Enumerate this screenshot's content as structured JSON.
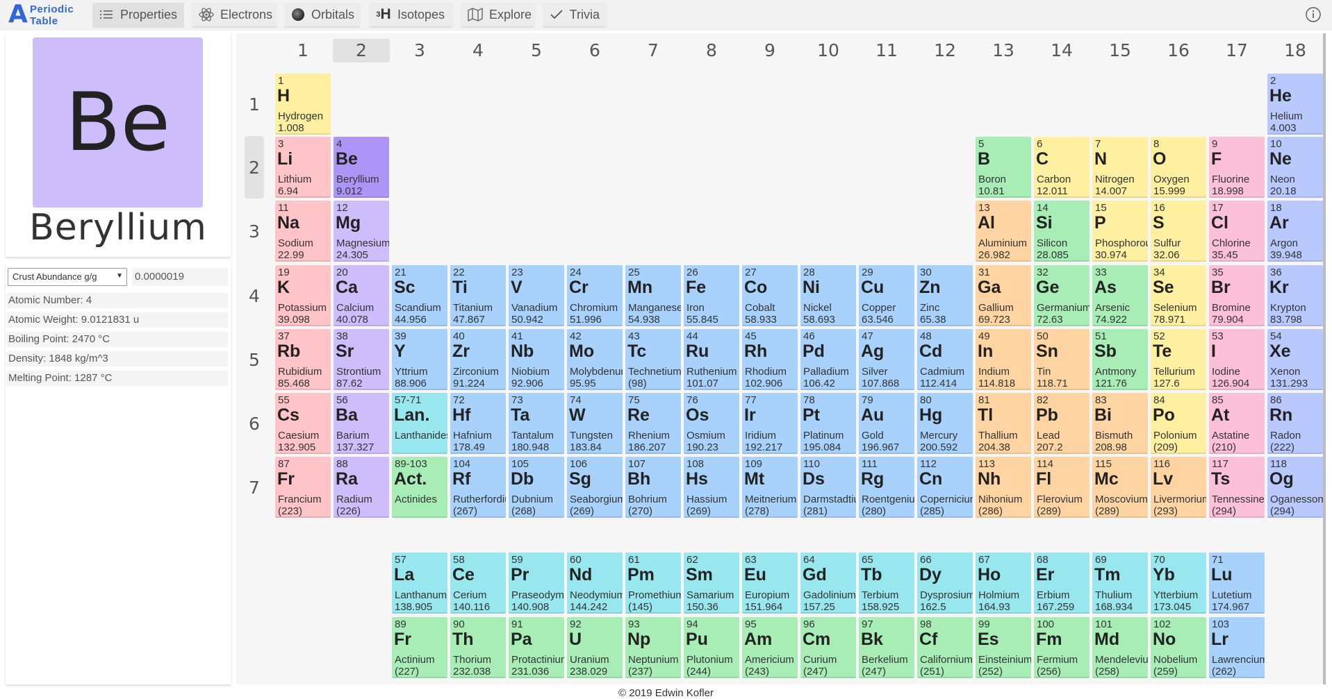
{
  "app": {
    "logo_letter": "A",
    "logo_line1": "Periodic",
    "logo_line2": "Table"
  },
  "nav": [
    {
      "label": "Properties",
      "icon": "list-icon",
      "active": true
    },
    {
      "label": "Electrons",
      "icon": "atom-icon",
      "active": false
    },
    {
      "label": "Orbitals",
      "icon": "orbital-sphere-icon",
      "active": false
    },
    {
      "label": "Isotopes",
      "icon": "isotope-icon",
      "active": false
    },
    {
      "label": "Explore",
      "icon": "map-icon",
      "active": false
    },
    {
      "label": "Trivia",
      "icon": "check-icon",
      "active": false
    }
  ],
  "isotope_icon_text": {
    "sup": "3",
    "main": "H"
  },
  "selected": {
    "symbol": "Be",
    "name": "Beryllium",
    "color": "#cdbdfa",
    "property_select": "Crust Abundance g/g",
    "property_value": "0.0000019",
    "properties": [
      "Atomic Number: 4",
      "Atomic Weight: 9.0121831 u",
      "Boiling Point: 2470 °C",
      "Density: 1848 kg/m^3",
      "Melting Point: 1287 °C"
    ]
  },
  "groups": [
    "1",
    "2",
    "3",
    "4",
    "5",
    "6",
    "7",
    "8",
    "9",
    "10",
    "11",
    "12",
    "13",
    "14",
    "15",
    "16",
    "17",
    "18"
  ],
  "periods": [
    "1",
    "2",
    "3",
    "4",
    "5",
    "6",
    "7"
  ],
  "highlight": {
    "group": "2",
    "period": "2"
  },
  "category_colors": {
    "alkali": "#ffc4c8",
    "alkaline": "#cdbdfa",
    "transition": "#a8d2fb",
    "lanthanide": "#98e6ee",
    "actinide": "#a8edb6",
    "metal": "#fed5a2",
    "metalloid": "#a8edb6",
    "nonmetal": "#fef0a0",
    "halogen": "#fdc0d9",
    "noble": "#b9c9fd",
    "selected": "#ad94f7"
  },
  "elements": [
    {
      "n": "1",
      "s": "H",
      "name": "Hydrogen",
      "w": "1.008",
      "g": 1,
      "p": 1,
      "t": "nonmetal"
    },
    {
      "n": "2",
      "s": "He",
      "name": "Helium",
      "w": "4.003",
      "g": 18,
      "p": 1,
      "t": "noble"
    },
    {
      "n": "3",
      "s": "Li",
      "name": "Lithium",
      "w": "6.94",
      "g": 1,
      "p": 2,
      "t": "alkali"
    },
    {
      "n": "4",
      "s": "Be",
      "name": "Beryllium",
      "w": "9.012",
      "g": 2,
      "p": 2,
      "t": "selected"
    },
    {
      "n": "5",
      "s": "B",
      "name": "Boron",
      "w": "10.81",
      "g": 13,
      "p": 2,
      "t": "metalloid"
    },
    {
      "n": "6",
      "s": "C",
      "name": "Carbon",
      "w": "12.011",
      "g": 14,
      "p": 2,
      "t": "nonmetal"
    },
    {
      "n": "7",
      "s": "N",
      "name": "Nitrogen",
      "w": "14.007",
      "g": 15,
      "p": 2,
      "t": "nonmetal"
    },
    {
      "n": "8",
      "s": "O",
      "name": "Oxygen",
      "w": "15.999",
      "g": 16,
      "p": 2,
      "t": "nonmetal"
    },
    {
      "n": "9",
      "s": "F",
      "name": "Fluorine",
      "w": "18.998",
      "g": 17,
      "p": 2,
      "t": "halogen"
    },
    {
      "n": "10",
      "s": "Ne",
      "name": "Neon",
      "w": "20.18",
      "g": 18,
      "p": 2,
      "t": "noble"
    },
    {
      "n": "11",
      "s": "Na",
      "name": "Sodium",
      "w": "22.99",
      "g": 1,
      "p": 3,
      "t": "alkali"
    },
    {
      "n": "12",
      "s": "Mg",
      "name": "Magnesium",
      "w": "24.305",
      "g": 2,
      "p": 3,
      "t": "alkaline"
    },
    {
      "n": "13",
      "s": "Al",
      "name": "Aluminium",
      "w": "26.982",
      "g": 13,
      "p": 3,
      "t": "metal"
    },
    {
      "n": "14",
      "s": "Si",
      "name": "Silicon",
      "w": "28.085",
      "g": 14,
      "p": 3,
      "t": "metalloid"
    },
    {
      "n": "15",
      "s": "P",
      "name": "Phosphorous",
      "w": "30.974",
      "g": 15,
      "p": 3,
      "t": "nonmetal"
    },
    {
      "n": "16",
      "s": "S",
      "name": "Sulfur",
      "w": "32.06",
      "g": 16,
      "p": 3,
      "t": "nonmetal"
    },
    {
      "n": "17",
      "s": "Cl",
      "name": "Chlorine",
      "w": "35.45",
      "g": 17,
      "p": 3,
      "t": "halogen"
    },
    {
      "n": "18",
      "s": "Ar",
      "name": "Argon",
      "w": "39.948",
      "g": 18,
      "p": 3,
      "t": "noble"
    },
    {
      "n": "19",
      "s": "K",
      "name": "Potassium",
      "w": "39.098",
      "g": 1,
      "p": 4,
      "t": "alkali"
    },
    {
      "n": "20",
      "s": "Ca",
      "name": "Calcium",
      "w": "40.078",
      "g": 2,
      "p": 4,
      "t": "alkaline"
    },
    {
      "n": "21",
      "s": "Sc",
      "name": "Scandium",
      "w": "44.956",
      "g": 3,
      "p": 4,
      "t": "transition"
    },
    {
      "n": "22",
      "s": "Ti",
      "name": "Titanium",
      "w": "47.867",
      "g": 4,
      "p": 4,
      "t": "transition"
    },
    {
      "n": "23",
      "s": "V",
      "name": "Vanadium",
      "w": "50.942",
      "g": 5,
      "p": 4,
      "t": "transition"
    },
    {
      "n": "24",
      "s": "Cr",
      "name": "Chromium",
      "w": "51.996",
      "g": 6,
      "p": 4,
      "t": "transition"
    },
    {
      "n": "25",
      "s": "Mn",
      "name": "Manganese",
      "w": "54.938",
      "g": 7,
      "p": 4,
      "t": "transition"
    },
    {
      "n": "26",
      "s": "Fe",
      "name": "Iron",
      "w": "55.845",
      "g": 8,
      "p": 4,
      "t": "transition"
    },
    {
      "n": "27",
      "s": "Co",
      "name": "Cobalt",
      "w": "58.933",
      "g": 9,
      "p": 4,
      "t": "transition"
    },
    {
      "n": "28",
      "s": "Ni",
      "name": "Nickel",
      "w": "58.693",
      "g": 10,
      "p": 4,
      "t": "transition"
    },
    {
      "n": "29",
      "s": "Cu",
      "name": "Copper",
      "w": "63.546",
      "g": 11,
      "p": 4,
      "t": "transition"
    },
    {
      "n": "30",
      "s": "Zn",
      "name": "Zinc",
      "w": "65.38",
      "g": 12,
      "p": 4,
      "t": "transition"
    },
    {
      "n": "31",
      "s": "Ga",
      "name": "Gallium",
      "w": "69.723",
      "g": 13,
      "p": 4,
      "t": "metal"
    },
    {
      "n": "32",
      "s": "Ge",
      "name": "Germanium",
      "w": "72.63",
      "g": 14,
      "p": 4,
      "t": "metalloid"
    },
    {
      "n": "33",
      "s": "As",
      "name": "Arsenic",
      "w": "74.922",
      "g": 15,
      "p": 4,
      "t": "metalloid"
    },
    {
      "n": "34",
      "s": "Se",
      "name": "Selenium",
      "w": "78.971",
      "g": 16,
      "p": 4,
      "t": "nonmetal"
    },
    {
      "n": "35",
      "s": "Br",
      "name": "Bromine",
      "w": "79.904",
      "g": 17,
      "p": 4,
      "t": "halogen"
    },
    {
      "n": "36",
      "s": "Kr",
      "name": "Krypton",
      "w": "83.798",
      "g": 18,
      "p": 4,
      "t": "noble"
    },
    {
      "n": "37",
      "s": "Rb",
      "name": "Rubidium",
      "w": "85.468",
      "g": 1,
      "p": 5,
      "t": "alkali"
    },
    {
      "n": "38",
      "s": "Sr",
      "name": "Strontium",
      "w": "87.62",
      "g": 2,
      "p": 5,
      "t": "alkaline"
    },
    {
      "n": "39",
      "s": "Y",
      "name": "Yttrium",
      "w": "88.906",
      "g": 3,
      "p": 5,
      "t": "transition"
    },
    {
      "n": "40",
      "s": "Zr",
      "name": "Zirconium",
      "w": "91.224",
      "g": 4,
      "p": 5,
      "t": "transition"
    },
    {
      "n": "41",
      "s": "Nb",
      "name": "Niobium",
      "w": "92.906",
      "g": 5,
      "p": 5,
      "t": "transition"
    },
    {
      "n": "42",
      "s": "Mo",
      "name": "Molybdenum",
      "w": "95.95",
      "g": 6,
      "p": 5,
      "t": "transition"
    },
    {
      "n": "43",
      "s": "Tc",
      "name": "Technetium",
      "w": "(98)",
      "g": 7,
      "p": 5,
      "t": "transition"
    },
    {
      "n": "44",
      "s": "Ru",
      "name": "Ruthenium",
      "w": "101.07",
      "g": 8,
      "p": 5,
      "t": "transition"
    },
    {
      "n": "45",
      "s": "Rh",
      "name": "Rhodium",
      "w": "102.906",
      "g": 9,
      "p": 5,
      "t": "transition"
    },
    {
      "n": "46",
      "s": "Pd",
      "name": "Palladium",
      "w": "106.42",
      "g": 10,
      "p": 5,
      "t": "transition"
    },
    {
      "n": "47",
      "s": "Ag",
      "name": "Silver",
      "w": "107.868",
      "g": 11,
      "p": 5,
      "t": "transition"
    },
    {
      "n": "48",
      "s": "Cd",
      "name": "Cadmium",
      "w": "112.414",
      "g": 12,
      "p": 5,
      "t": "transition"
    },
    {
      "n": "49",
      "s": "In",
      "name": "Indium",
      "w": "114.818",
      "g": 13,
      "p": 5,
      "t": "metal"
    },
    {
      "n": "50",
      "s": "Sn",
      "name": "Tin",
      "w": "118.71",
      "g": 14,
      "p": 5,
      "t": "metal"
    },
    {
      "n": "51",
      "s": "Sb",
      "name": "Antmony",
      "w": "121.76",
      "g": 15,
      "p": 5,
      "t": "metalloid"
    },
    {
      "n": "52",
      "s": "Te",
      "name": "Tellurium",
      "w": "127.6",
      "g": 16,
      "p": 5,
      "t": "nonmetal"
    },
    {
      "n": "53",
      "s": "I",
      "name": "Iodine",
      "w": "126.904",
      "g": 17,
      "p": 5,
      "t": "halogen"
    },
    {
      "n": "54",
      "s": "Xe",
      "name": "Xenon",
      "w": "131.293",
      "g": 18,
      "p": 5,
      "t": "noble"
    },
    {
      "n": "55",
      "s": "Cs",
      "name": "Caesium",
      "w": "132.905",
      "g": 1,
      "p": 6,
      "t": "alkali"
    },
    {
      "n": "56",
      "s": "Ba",
      "name": "Barium",
      "w": "137.327",
      "g": 2,
      "p": 6,
      "t": "alkaline"
    },
    {
      "n": "57-71",
      "s": "Lan.",
      "name": "Lanthanides",
      "w": "",
      "g": 3,
      "p": 6,
      "t": "lanthanide"
    },
    {
      "n": "72",
      "s": "Hf",
      "name": "Hafnium",
      "w": "178.49",
      "g": 4,
      "p": 6,
      "t": "transition"
    },
    {
      "n": "73",
      "s": "Ta",
      "name": "Tantalum",
      "w": "180.948",
      "g": 5,
      "p": 6,
      "t": "transition"
    },
    {
      "n": "74",
      "s": "W",
      "name": "Tungsten",
      "w": "183.84",
      "g": 6,
      "p": 6,
      "t": "transition"
    },
    {
      "n": "75",
      "s": "Re",
      "name": "Rhenium",
      "w": "186.207",
      "g": 7,
      "p": 6,
      "t": "transition"
    },
    {
      "n": "76",
      "s": "Os",
      "name": "Osmium",
      "w": "190.23",
      "g": 8,
      "p": 6,
      "t": "transition"
    },
    {
      "n": "77",
      "s": "Ir",
      "name": "Iridium",
      "w": "192.217",
      "g": 9,
      "p": 6,
      "t": "transition"
    },
    {
      "n": "78",
      "s": "Pt",
      "name": "Platinum",
      "w": "195.084",
      "g": 10,
      "p": 6,
      "t": "transition"
    },
    {
      "n": "79",
      "s": "Au",
      "name": "Gold",
      "w": "196.967",
      "g": 11,
      "p": 6,
      "t": "transition"
    },
    {
      "n": "80",
      "s": "Hg",
      "name": "Mercury",
      "w": "200.592",
      "g": 12,
      "p": 6,
      "t": "transition"
    },
    {
      "n": "81",
      "s": "Tl",
      "name": "Thallium",
      "w": "204.38",
      "g": 13,
      "p": 6,
      "t": "metal"
    },
    {
      "n": "82",
      "s": "Pb",
      "name": "Lead",
      "w": "207.2",
      "g": 14,
      "p": 6,
      "t": "metal"
    },
    {
      "n": "83",
      "s": "Bi",
      "name": "Bismuth",
      "w": "208.98",
      "g": 15,
      "p": 6,
      "t": "metal"
    },
    {
      "n": "84",
      "s": "Po",
      "name": "Polonium",
      "w": "(209)",
      "g": 16,
      "p": 6,
      "t": "nonmetal"
    },
    {
      "n": "85",
      "s": "At",
      "name": "Astatine",
      "w": "(210)",
      "g": 17,
      "p": 6,
      "t": "halogen"
    },
    {
      "n": "86",
      "s": "Rn",
      "name": "Radon",
      "w": "(222)",
      "g": 18,
      "p": 6,
      "t": "noble"
    },
    {
      "n": "87",
      "s": "Fr",
      "name": "Francium",
      "w": "(223)",
      "g": 1,
      "p": 7,
      "t": "alkali"
    },
    {
      "n": "88",
      "s": "Ra",
      "name": "Radium",
      "w": "(226)",
      "g": 2,
      "p": 7,
      "t": "alkaline"
    },
    {
      "n": "89-103",
      "s": "Act.",
      "name": "Actinides",
      "w": "",
      "g": 3,
      "p": 7,
      "t": "actinide"
    },
    {
      "n": "104",
      "s": "Rf",
      "name": "Rutherfordium",
      "w": "(267)",
      "g": 4,
      "p": 7,
      "t": "transition"
    },
    {
      "n": "105",
      "s": "Db",
      "name": "Dubnium",
      "w": "(268)",
      "g": 5,
      "p": 7,
      "t": "transition"
    },
    {
      "n": "106",
      "s": "Sg",
      "name": "Seaborgium",
      "w": "(269)",
      "g": 6,
      "p": 7,
      "t": "transition"
    },
    {
      "n": "107",
      "s": "Bh",
      "name": "Bohrium",
      "w": "(270)",
      "g": 7,
      "p": 7,
      "t": "transition"
    },
    {
      "n": "108",
      "s": "Hs",
      "name": "Hassium",
      "w": "(269)",
      "g": 8,
      "p": 7,
      "t": "transition"
    },
    {
      "n": "109",
      "s": "Mt",
      "name": "Meitnerium",
      "w": "(278)",
      "g": 9,
      "p": 7,
      "t": "transition"
    },
    {
      "n": "110",
      "s": "Ds",
      "name": "Darmstadtium",
      "w": "(281)",
      "g": 10,
      "p": 7,
      "t": "transition"
    },
    {
      "n": "111",
      "s": "Rg",
      "name": "Roentgenium",
      "w": "(280)",
      "g": 11,
      "p": 7,
      "t": "transition"
    },
    {
      "n": "112",
      "s": "Cn",
      "name": "Copernicium",
      "w": "(285)",
      "g": 12,
      "p": 7,
      "t": "transition"
    },
    {
      "n": "113",
      "s": "Nh",
      "name": "Nihonium",
      "w": "(286)",
      "g": 13,
      "p": 7,
      "t": "metal"
    },
    {
      "n": "114",
      "s": "Fl",
      "name": "Flerovium",
      "w": "(289)",
      "g": 14,
      "p": 7,
      "t": "metal"
    },
    {
      "n": "115",
      "s": "Mc",
      "name": "Moscovium",
      "w": "(289)",
      "g": 15,
      "p": 7,
      "t": "metal"
    },
    {
      "n": "116",
      "s": "Lv",
      "name": "Livermorium",
      "w": "(293)",
      "g": 16,
      "p": 7,
      "t": "metal"
    },
    {
      "n": "117",
      "s": "Ts",
      "name": "Tennessine",
      "w": "(294)",
      "g": 17,
      "p": 7,
      "t": "halogen"
    },
    {
      "n": "118",
      "s": "Og",
      "name": "Oganesson",
      "w": "(294)",
      "g": 18,
      "p": 7,
      "t": "noble"
    },
    {
      "n": "57",
      "s": "La",
      "name": "Lanthanum",
      "w": "138.905",
      "g": 3,
      "p": 9,
      "t": "lanthanide"
    },
    {
      "n": "58",
      "s": "Ce",
      "name": "Cerium",
      "w": "140.116",
      "g": 4,
      "p": 9,
      "t": "lanthanide"
    },
    {
      "n": "59",
      "s": "Pr",
      "name": "Praseodymium",
      "w": "140.908",
      "g": 5,
      "p": 9,
      "t": "lanthanide"
    },
    {
      "n": "60",
      "s": "Nd",
      "name": "Neodymium",
      "w": "144.242",
      "g": 6,
      "p": 9,
      "t": "lanthanide"
    },
    {
      "n": "61",
      "s": "Pm",
      "name": "Promethium",
      "w": "(145)",
      "g": 7,
      "p": 9,
      "t": "lanthanide"
    },
    {
      "n": "62",
      "s": "Sm",
      "name": "Samarium",
      "w": "150.36",
      "g": 8,
      "p": 9,
      "t": "lanthanide"
    },
    {
      "n": "63",
      "s": "Eu",
      "name": "Europium",
      "w": "151.964",
      "g": 9,
      "p": 9,
      "t": "lanthanide"
    },
    {
      "n": "64",
      "s": "Gd",
      "name": "Gadolinium",
      "w": "157.25",
      "g": 10,
      "p": 9,
      "t": "lanthanide"
    },
    {
      "n": "65",
      "s": "Tb",
      "name": "Terbium",
      "w": "158.925",
      "g": 11,
      "p": 9,
      "t": "lanthanide"
    },
    {
      "n": "66",
      "s": "Dy",
      "name": "Dysprosium",
      "w": "162.5",
      "g": 12,
      "p": 9,
      "t": "lanthanide"
    },
    {
      "n": "67",
      "s": "Ho",
      "name": "Holmium",
      "w": "164.93",
      "g": 13,
      "p": 9,
      "t": "lanthanide"
    },
    {
      "n": "68",
      "s": "Er",
      "name": "Erbium",
      "w": "167.259",
      "g": 14,
      "p": 9,
      "t": "lanthanide"
    },
    {
      "n": "69",
      "s": "Tm",
      "name": "Thulium",
      "w": "168.934",
      "g": 15,
      "p": 9,
      "t": "lanthanide"
    },
    {
      "n": "70",
      "s": "Yb",
      "name": "Ytterbium",
      "w": "173.045",
      "g": 16,
      "p": 9,
      "t": "lanthanide"
    },
    {
      "n": "71",
      "s": "Lu",
      "name": "Lutetium",
      "w": "174.967",
      "g": 17,
      "p": 9,
      "t": "transition"
    },
    {
      "n": "89",
      "s": "Fr",
      "name": "Actinium",
      "w": "(227)",
      "g": 3,
      "p": 10,
      "t": "actinide"
    },
    {
      "n": "90",
      "s": "Th",
      "name": "Thorium",
      "w": "232.038",
      "g": 4,
      "p": 10,
      "t": "actinide"
    },
    {
      "n": "91",
      "s": "Pa",
      "name": "Protactinium",
      "w": "231.036",
      "g": 5,
      "p": 10,
      "t": "actinide"
    },
    {
      "n": "92",
      "s": "U",
      "name": "Uranium",
      "w": "238.029",
      "g": 6,
      "p": 10,
      "t": "actinide"
    },
    {
      "n": "93",
      "s": "Np",
      "name": "Neptunium",
      "w": "(237)",
      "g": 7,
      "p": 10,
      "t": "actinide"
    },
    {
      "n": "94",
      "s": "Pu",
      "name": "Plutonium",
      "w": "(244)",
      "g": 8,
      "p": 10,
      "t": "actinide"
    },
    {
      "n": "95",
      "s": "Am",
      "name": "Americium",
      "w": "(243)",
      "g": 9,
      "p": 10,
      "t": "actinide"
    },
    {
      "n": "96",
      "s": "Cm",
      "name": "Curium",
      "w": "(247)",
      "g": 10,
      "p": 10,
      "t": "actinide"
    },
    {
      "n": "97",
      "s": "Bk",
      "name": "Berkelium",
      "w": "(247)",
      "g": 11,
      "p": 10,
      "t": "actinide"
    },
    {
      "n": "98",
      "s": "Cf",
      "name": "Californium",
      "w": "(251)",
      "g": 12,
      "p": 10,
      "t": "actinide"
    },
    {
      "n": "99",
      "s": "Es",
      "name": "Einsteinium",
      "w": "(252)",
      "g": 13,
      "p": 10,
      "t": "actinide"
    },
    {
      "n": "100",
      "s": "Fm",
      "name": "Fermium",
      "w": "(256)",
      "g": 14,
      "p": 10,
      "t": "actinide"
    },
    {
      "n": "101",
      "s": "Md",
      "name": "Mendelevium",
      "w": "(258)",
      "g": 15,
      "p": 10,
      "t": "actinide"
    },
    {
      "n": "102",
      "s": "No",
      "name": "Nobelium",
      "w": "(259)",
      "g": 16,
      "p": 10,
      "t": "actinide"
    },
    {
      "n": "103",
      "s": "Lr",
      "name": "Lawrencium",
      "w": "(262)",
      "g": 17,
      "p": 10,
      "t": "transition"
    }
  ],
  "footer": "© 2019 Edwin Kofler"
}
